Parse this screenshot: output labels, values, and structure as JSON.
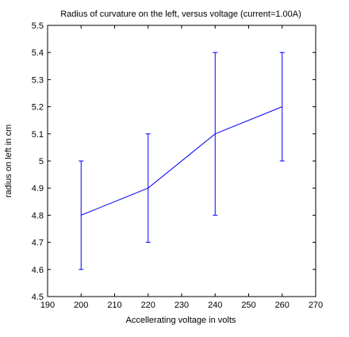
{
  "chart_data": {
    "type": "line",
    "title": "Radius of curvature on the left, versus voltage (current=1.00A)",
    "xlabel": "Accellerating voltage in volts",
    "ylabel": "radius on left in cm",
    "xlim": [
      190,
      270
    ],
    "ylim": [
      4.5,
      5.5
    ],
    "xticks": [
      190,
      200,
      210,
      220,
      230,
      240,
      250,
      260,
      270
    ],
    "xtick_labels": [
      "190",
      "200",
      "210",
      "220",
      "230",
      "240",
      "250",
      "260",
      "270"
    ],
    "yticks": [
      4.5,
      4.6,
      4.7,
      4.8,
      4.9,
      5.0,
      5.1,
      5.2,
      5.3,
      5.4,
      5.5
    ],
    "ytick_labels": [
      "4.5",
      "4.6",
      "4.7",
      "4.8",
      "4.9",
      "5",
      "5.1",
      "5.2",
      "5.3",
      "5.4",
      "5.5"
    ],
    "grid": false,
    "legend": "none",
    "series": [
      {
        "x": [
          200,
          220,
          240,
          260
        ],
        "y": [
          4.8,
          4.9,
          5.1,
          5.2
        ],
        "yerr": [
          0.2,
          0.2,
          0.3,
          0.2
        ],
        "color": "#0000ff"
      }
    ]
  }
}
